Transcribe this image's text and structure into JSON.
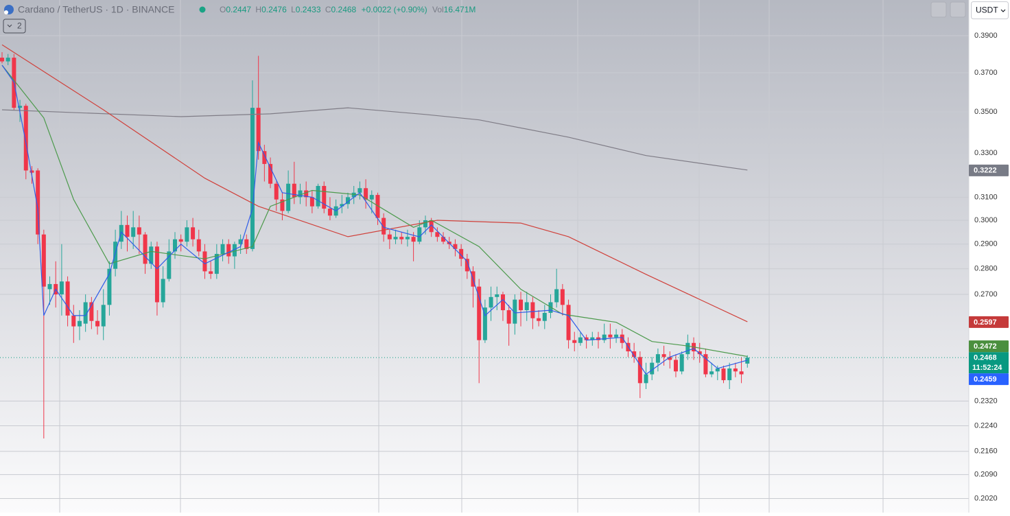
{
  "header": {
    "title": "Cardano / TetherUS · 1D · BINANCE",
    "o": "O",
    "h": "H",
    "l": "L",
    "c": "C",
    "change": "+0.0022 (+0.90%)",
    "vol_label": "Vol",
    "vol": "16.471M",
    "indicator_count": "2"
  },
  "toolbar": {
    "currency": "USDT",
    "countdown": "11:52:24"
  },
  "chart_data": {
    "type": "candlestick",
    "log_scale": true,
    "grid": true,
    "up_color": "#26a69a",
    "down_color": "#f0364a",
    "last_price_color": "#089981",
    "ylim": [
      0.198,
      0.4103
    ],
    "yticks": [
      {
        "value": 0.39,
        "label": "0.3900"
      },
      {
        "value": 0.37,
        "label": "0.3700"
      },
      {
        "value": 0.35,
        "label": "0.3500"
      },
      {
        "value": 0.33,
        "label": "0.3300"
      },
      {
        "value": 0.31,
        "label": "0.3100"
      },
      {
        "value": 0.3,
        "label": "0.3000"
      },
      {
        "value": 0.29,
        "label": "0.2900"
      },
      {
        "value": 0.28,
        "label": "0.2800"
      },
      {
        "value": 0.27,
        "label": "0.2700"
      },
      {
        "value": 0.232,
        "label": "0.2320"
      },
      {
        "value": 0.224,
        "label": "0.2240"
      },
      {
        "value": 0.216,
        "label": "0.2160"
      },
      {
        "value": 0.209,
        "label": "0.2090"
      },
      {
        "value": 0.202,
        "label": "0.2020"
      }
    ],
    "open": [
      0.378,
      0.376,
      0.378,
      0.352,
      0.353,
      0.322,
      0.322,
      0.294,
      0.272,
      0.274,
      0.27,
      0.275,
      0.262,
      0.258,
      0.259,
      0.267,
      0.26,
      0.258,
      0.266,
      0.28,
      0.291,
      0.298,
      0.293,
      0.297,
      0.294,
      0.282,
      0.289,
      0.267,
      0.276,
      0.287,
      0.292,
      0.291,
      0.297,
      0.292,
      0.287,
      0.279,
      0.278,
      0.286,
      0.29,
      0.285,
      0.29,
      0.292,
      0.288,
      0.352,
      0.331,
      0.325,
      0.316,
      0.309,
      0.304,
      0.316,
      0.31,
      0.313,
      0.31,
      0.306,
      0.315,
      0.305,
      0.302,
      0.306,
      0.307,
      0.31,
      0.312,
      0.314,
      0.309,
      0.311,
      0.301,
      0.294,
      0.292,
      0.293,
      0.292,
      0.293,
      0.291,
      0.297,
      0.3,
      0.295,
      0.293,
      0.291,
      0.29,
      0.288,
      0.284,
      0.279,
      0.273,
      0.253,
      0.265,
      0.269,
      0.27,
      0.264,
      0.259,
      0.268,
      0.264,
      0.267,
      0.261,
      0.26,
      0.263,
      0.267,
      0.272,
      0.266,
      0.253,
      0.252,
      0.254,
      0.253,
      0.254,
      0.253,
      0.255,
      0.254,
      0.255,
      0.252,
      0.249,
      0.247,
      0.238,
      0.241,
      0.245,
      0.248,
      0.247,
      0.246,
      0.242,
      0.248,
      0.252,
      0.249,
      0.248,
      0.241,
      0.242,
      0.243,
      0.239,
      0.243,
      0.242,
      0.2447
    ],
    "high": [
      0.381,
      0.38,
      0.38,
      0.356,
      0.354,
      0.324,
      0.323,
      0.296,
      0.277,
      0.283,
      0.29,
      0.277,
      0.266,
      0.264,
      0.27,
      0.269,
      0.264,
      0.272,
      0.283,
      0.296,
      0.304,
      0.302,
      0.304,
      0.302,
      0.295,
      0.291,
      0.291,
      0.281,
      0.292,
      0.295,
      0.294,
      0.3,
      0.301,
      0.296,
      0.29,
      0.283,
      0.29,
      0.292,
      0.292,
      0.291,
      0.294,
      0.294,
      0.366,
      0.379,
      0.334,
      0.328,
      0.317,
      0.312,
      0.322,
      0.326,
      0.316,
      0.317,
      0.313,
      0.316,
      0.317,
      0.31,
      0.309,
      0.311,
      0.312,
      0.315,
      0.317,
      0.318,
      0.313,
      0.312,
      0.303,
      0.296,
      0.296,
      0.295,
      0.296,
      0.295,
      0.3,
      0.302,
      0.301,
      0.297,
      0.295,
      0.293,
      0.292,
      0.29,
      0.286,
      0.281,
      0.276,
      0.268,
      0.273,
      0.273,
      0.271,
      0.266,
      0.27,
      0.271,
      0.271,
      0.269,
      0.264,
      0.266,
      0.27,
      0.28,
      0.274,
      0.268,
      0.256,
      0.256,
      0.255,
      0.256,
      0.256,
      0.259,
      0.259,
      0.257,
      0.257,
      0.254,
      0.252,
      0.249,
      0.245,
      0.247,
      0.25,
      0.251,
      0.249,
      0.248,
      0.249,
      0.255,
      0.254,
      0.252,
      0.25,
      0.245,
      0.244,
      0.244,
      0.245,
      0.245,
      0.247,
      0.2476
    ],
    "low": [
      0.375,
      0.374,
      0.351,
      0.345,
      0.318,
      0.316,
      0.29,
      0.22,
      0.266,
      0.265,
      0.262,
      0.258,
      0.252,
      0.253,
      0.256,
      0.257,
      0.255,
      0.253,
      0.262,
      0.277,
      0.288,
      0.287,
      0.288,
      0.286,
      0.278,
      0.28,
      0.262,
      0.265,
      0.275,
      0.284,
      0.287,
      0.289,
      0.289,
      0.285,
      0.276,
      0.276,
      0.276,
      0.283,
      0.282,
      0.28,
      0.286,
      0.286,
      0.287,
      0.327,
      0.317,
      0.314,
      0.304,
      0.3,
      0.303,
      0.307,
      0.307,
      0.306,
      0.303,
      0.305,
      0.303,
      0.3,
      0.301,
      0.303,
      0.305,
      0.307,
      0.309,
      0.305,
      0.303,
      0.298,
      0.291,
      0.288,
      0.29,
      0.29,
      0.289,
      0.283,
      0.29,
      0.294,
      0.293,
      0.291,
      0.29,
      0.288,
      0.285,
      0.281,
      0.276,
      0.265,
      0.238,
      0.252,
      0.26,
      0.264,
      0.26,
      0.251,
      0.255,
      0.258,
      0.26,
      0.257,
      0.258,
      0.257,
      0.261,
      0.265,
      0.262,
      0.25,
      0.249,
      0.251,
      0.25,
      0.251,
      0.25,
      0.252,
      0.25,
      0.252,
      0.25,
      0.247,
      0.245,
      0.233,
      0.236,
      0.239,
      0.242,
      0.244,
      0.243,
      0.24,
      0.241,
      0.246,
      0.246,
      0.245,
      0.24,
      0.24,
      0.239,
      0.238,
      0.236,
      0.24,
      0.238,
      0.2433
    ],
    "close": [
      0.376,
      0.378,
      0.352,
      0.353,
      0.322,
      0.321,
      0.294,
      0.273,
      0.274,
      0.27,
      0.275,
      0.262,
      0.258,
      0.26,
      0.267,
      0.26,
      0.258,
      0.266,
      0.28,
      0.291,
      0.298,
      0.293,
      0.297,
      0.294,
      0.282,
      0.289,
      0.267,
      0.276,
      0.287,
      0.292,
      0.291,
      0.297,
      0.292,
      0.287,
      0.279,
      0.278,
      0.286,
      0.29,
      0.285,
      0.29,
      0.292,
      0.288,
      0.352,
      0.331,
      0.325,
      0.316,
      0.309,
      0.304,
      0.316,
      0.31,
      0.313,
      0.31,
      0.306,
      0.315,
      0.305,
      0.302,
      0.306,
      0.307,
      0.31,
      0.312,
      0.314,
      0.309,
      0.311,
      0.301,
      0.294,
      0.292,
      0.293,
      0.292,
      0.293,
      0.291,
      0.297,
      0.3,
      0.295,
      0.293,
      0.291,
      0.29,
      0.288,
      0.284,
      0.279,
      0.273,
      0.253,
      0.265,
      0.269,
      0.27,
      0.264,
      0.259,
      0.268,
      0.264,
      0.267,
      0.261,
      0.26,
      0.263,
      0.267,
      0.272,
      0.266,
      0.253,
      0.252,
      0.254,
      0.253,
      0.254,
      0.253,
      0.255,
      0.254,
      0.255,
      0.252,
      0.249,
      0.247,
      0.238,
      0.241,
      0.245,
      0.248,
      0.247,
      0.246,
      0.242,
      0.248,
      0.252,
      0.249,
      0.248,
      0.241,
      0.242,
      0.243,
      0.239,
      0.243,
      0.242,
      0.241,
      0.2468
    ],
    "lines": [
      {
        "color": "#7f7c86",
        "label_color": "#787b86",
        "x": [
          0,
          30,
          45,
          58,
          71,
          80,
          95,
          108,
          125
        ],
        "values": [
          0.351,
          0.3476,
          0.349,
          0.352,
          0.3487,
          0.346,
          0.3376,
          0.3289,
          0.3222
        ]
      },
      {
        "color": "#d0413b",
        "label_color": "#c53a3a",
        "x": [
          0,
          17,
          34,
          43,
          58,
          73,
          87,
          95,
          108,
          125
        ],
        "values": [
          0.385,
          0.351,
          0.3185,
          0.306,
          0.2931,
          0.3,
          0.2988,
          0.2931,
          0.2778,
          0.2597
        ]
      },
      {
        "color": "#4c9a4c",
        "label_color": "#4a8f3e",
        "x": [
          0,
          7,
          12,
          18,
          25,
          34,
          42,
          45,
          52,
          60,
          69,
          72,
          80,
          87,
          94,
          103,
          109,
          115,
          125
        ],
        "values": [
          0.374,
          0.347,
          0.309,
          0.282,
          0.287,
          0.284,
          0.289,
          0.306,
          0.313,
          0.311,
          0.297,
          0.3,
          0.289,
          0.272,
          0.2625,
          0.2595,
          0.2525,
          0.2509,
          0.2472
        ]
      },
      {
        "color": "#2f5de8",
        "label_color": "#2962ff",
        "x": [
          0,
          2,
          4,
          6,
          7,
          9,
          12,
          14,
          18,
          20,
          26,
          30,
          34,
          40,
          42,
          43,
          47,
          52,
          56,
          60,
          64,
          70,
          72,
          78,
          81,
          84,
          86,
          92,
          95,
          98,
          104,
          108,
          112,
          116,
          120,
          125
        ],
        "values": [
          0.374,
          0.365,
          0.335,
          0.305,
          0.262,
          0.272,
          0.262,
          0.262,
          0.278,
          0.295,
          0.28,
          0.29,
          0.282,
          0.289,
          0.305,
          0.335,
          0.312,
          0.31,
          0.304,
          0.312,
          0.297,
          0.293,
          0.298,
          0.283,
          0.262,
          0.268,
          0.263,
          0.264,
          0.262,
          0.253,
          0.254,
          0.241,
          0.247,
          0.25,
          0.243,
          0.2459
        ]
      }
    ]
  }
}
